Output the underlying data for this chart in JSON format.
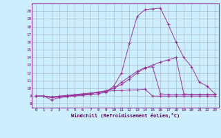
{
  "xlabel": "Windchill (Refroidissement éolien,°C)",
  "xlim": [
    -0.5,
    23.5
  ],
  "ylim": [
    7.5,
    21.0
  ],
  "yticks": [
    8,
    9,
    10,
    11,
    12,
    13,
    14,
    15,
    16,
    17,
    18,
    19,
    20
  ],
  "xticks": [
    0,
    1,
    2,
    3,
    4,
    5,
    6,
    7,
    8,
    9,
    10,
    11,
    12,
    13,
    14,
    15,
    16,
    17,
    18,
    19,
    20,
    21,
    22,
    23
  ],
  "bg_color": "#cceeff",
  "grid_color": "#aabbcc",
  "line_color": "#993399",
  "lines": [
    {
      "x": [
        0,
        1,
        2,
        3,
        4,
        5,
        6,
        7,
        8,
        9,
        10,
        11,
        12,
        13,
        14,
        15,
        16,
        17,
        18,
        19,
        20,
        21,
        22,
        23
      ],
      "y": [
        9.0,
        9.0,
        8.5,
        8.8,
        8.9,
        9.0,
        9.1,
        9.2,
        9.3,
        9.5,
        10.3,
        12.0,
        15.8,
        19.3,
        20.2,
        20.3,
        20.4,
        18.3,
        16.0,
        14.0,
        12.8,
        10.8,
        10.3,
        9.3
      ]
    },
    {
      "x": [
        0,
        1,
        2,
        3,
        4,
        5,
        6,
        7,
        8,
        9,
        10,
        11,
        12,
        13,
        14,
        15,
        16,
        17,
        18,
        19,
        20,
        21,
        22,
        23
      ],
      "y": [
        9.0,
        9.0,
        8.8,
        8.9,
        9.0,
        9.1,
        9.2,
        9.3,
        9.5,
        9.6,
        10.0,
        10.5,
        11.2,
        12.0,
        12.6,
        13.0,
        13.4,
        13.7,
        14.0,
        9.3,
        9.2,
        9.2,
        9.2,
        9.2
      ]
    },
    {
      "x": [
        0,
        1,
        2,
        3,
        4,
        5,
        6,
        7,
        8,
        9,
        10,
        11,
        12,
        13,
        14,
        15,
        16,
        17,
        18,
        19,
        20,
        21,
        22,
        23
      ],
      "y": [
        9.0,
        9.0,
        8.8,
        8.9,
        9.0,
        9.1,
        9.2,
        9.3,
        9.5,
        9.7,
        10.0,
        10.8,
        11.5,
        12.2,
        12.7,
        12.8,
        9.3,
        9.2,
        9.2,
        9.2,
        9.2,
        9.2,
        9.2,
        9.2
      ]
    },
    {
      "x": [
        0,
        1,
        2,
        3,
        4,
        5,
        6,
        7,
        8,
        9,
        10,
        11,
        12,
        13,
        14,
        15,
        16,
        17,
        18,
        19,
        20,
        21,
        22,
        23
      ],
      "y": [
        9.0,
        9.0,
        8.9,
        9.0,
        9.1,
        9.2,
        9.3,
        9.4,
        9.5,
        9.6,
        9.7,
        9.7,
        9.8,
        9.8,
        9.9,
        9.0,
        9.0,
        9.0,
        9.0,
        9.0,
        9.0,
        9.0,
        9.0,
        9.0
      ]
    }
  ]
}
